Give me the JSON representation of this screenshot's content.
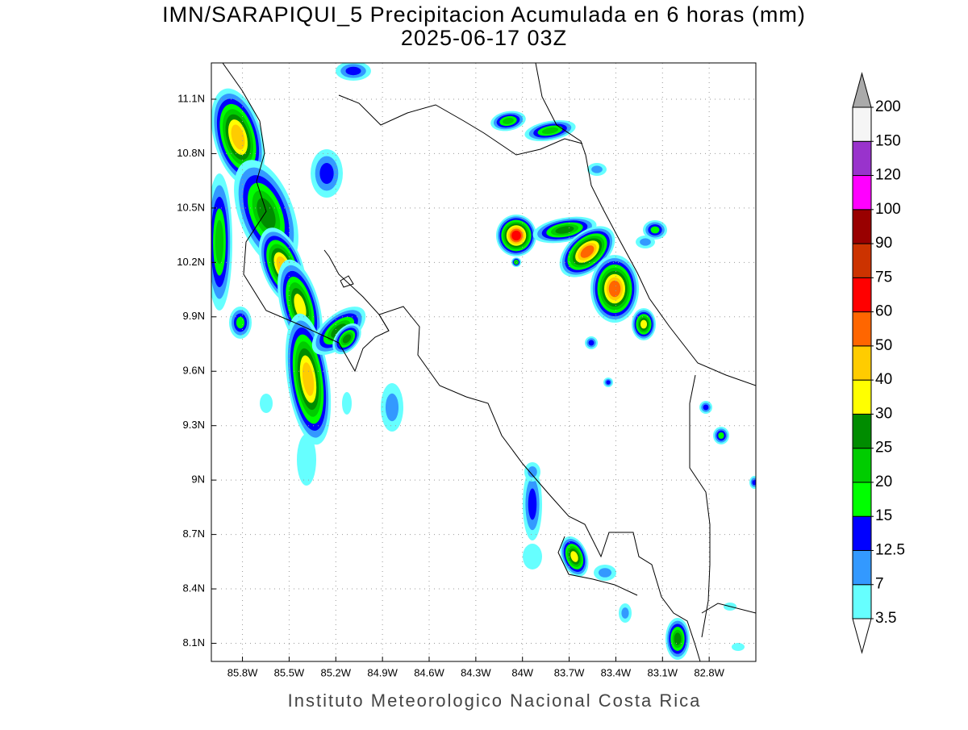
{
  "title": "IMN/SARAPIQUI_5 Precipitacion Acumulada en 6 horas (mm)",
  "subtitle": "2025-06-17 03Z",
  "footer": "Instituto Meteorologico Nacional Costa Rica",
  "map": {
    "xlim": [
      -86.0,
      -82.5
    ],
    "ylim": [
      8.0,
      11.3
    ],
    "grid": true,
    "xticks": [
      {
        "value": -85.8,
        "label": "85.8W"
      },
      {
        "value": -85.5,
        "label": "85.5W"
      },
      {
        "value": -85.2,
        "label": "85.2W"
      },
      {
        "value": -84.9,
        "label": "84.9W"
      },
      {
        "value": -84.6,
        "label": "84.6W"
      },
      {
        "value": -84.3,
        "label": "84.3W"
      },
      {
        "value": -84,
        "label": "84W"
      },
      {
        "value": -83.7,
        "label": "83.7W"
      },
      {
        "value": -83.4,
        "label": "83.4W"
      },
      {
        "value": -83.1,
        "label": "83.1W"
      },
      {
        "value": -82.8,
        "label": "82.8W"
      }
    ],
    "yticks": [
      {
        "value": 11.1,
        "label": "11.1N"
      },
      {
        "value": 10.8,
        "label": "10.8N"
      },
      {
        "value": 10.5,
        "label": "10.5N"
      },
      {
        "value": 10.2,
        "label": "10.2N"
      },
      {
        "value": 9.9,
        "label": "9.9N"
      },
      {
        "value": 9.6,
        "label": "9.6N"
      },
      {
        "value": 9.3,
        "label": "9.3N"
      },
      {
        "value": 9,
        "label": "9N"
      },
      {
        "value": 8.7,
        "label": "8.7N"
      },
      {
        "value": 8.4,
        "label": "8.4N"
      },
      {
        "value": 8.1,
        "label": "8.1N"
      }
    ]
  },
  "colorbar": {
    "levels": [
      3.5,
      7,
      12.5,
      15,
      20,
      25,
      30,
      40,
      50,
      60,
      75,
      90,
      100,
      120,
      150,
      200
    ],
    "colors": [
      "#66ffff",
      "#3399ff",
      "#0000ff",
      "#00ff00",
      "#00cc00",
      "#008c00",
      "#ffff00",
      "#ffcc00",
      "#ff6600",
      "#ff0000",
      "#cc3300",
      "#990000",
      "#ff00ff",
      "#9933cc",
      "#f5f5f5"
    ],
    "under_color": "#ffffff",
    "over_color": "#aaaaaa"
  }
}
